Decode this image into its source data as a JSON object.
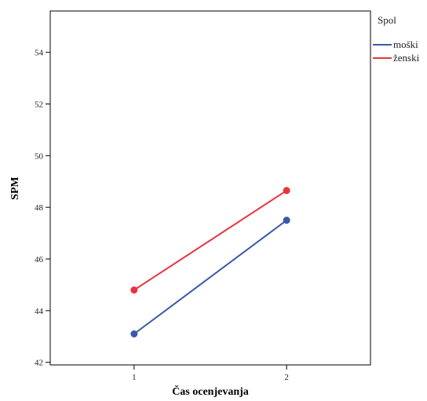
{
  "chart_data": {
    "type": "line",
    "title": "",
    "xlabel": "Čas ocenjevanja",
    "ylabel": "SPM",
    "x": [
      1,
      2
    ],
    "xlim": [
      0.45,
      2.55
    ],
    "ylim": [
      41.9,
      55.6
    ],
    "y_ticks": [
      42,
      44,
      46,
      48,
      50,
      52,
      54
    ],
    "x_ticks": [
      1,
      2
    ],
    "grid": false,
    "legend": {
      "title": "Spol",
      "placement": "outside-top-right"
    },
    "series": [
      {
        "name": "moški",
        "values": [
          43.1,
          47.5
        ],
        "color": "#3a58a8"
      },
      {
        "name": "ženski",
        "values": [
          44.8,
          48.65
        ],
        "color": "#e8333d"
      }
    ]
  }
}
